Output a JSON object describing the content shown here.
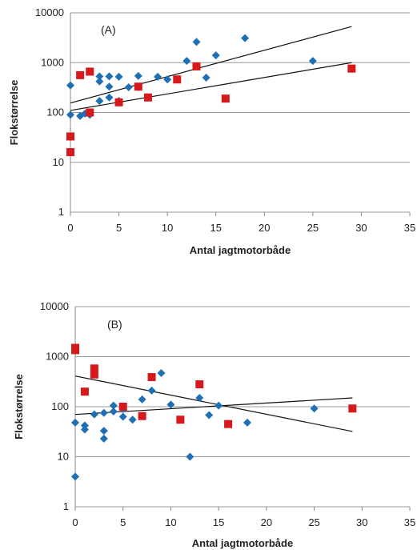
{
  "chart_data": [
    {
      "type": "scatter",
      "label": "(A)",
      "xlabel": "Antal jagtmotorbåde",
      "ylabel": "Flokstørrelse",
      "xlim": [
        0,
        35
      ],
      "ylim": [
        1,
        10000
      ],
      "y_scale": "log",
      "x_ticks": [
        "0",
        "5",
        "10",
        "15",
        "20",
        "25",
        "30",
        "35"
      ],
      "y_ticks": [
        "1",
        "10",
        "100",
        "1000",
        "10000"
      ],
      "grid": "horizontal",
      "series": [
        {
          "marker": "diamond",
          "color": "#1f6fb5",
          "points": [
            [
              0,
              90
            ],
            [
              0,
              350
            ],
            [
              1,
              85
            ],
            [
              1.5,
              95
            ],
            [
              2,
              90
            ],
            [
              3,
              170
            ],
            [
              3,
              420
            ],
            [
              3,
              530
            ],
            [
              4,
              200
            ],
            [
              4,
              330
            ],
            [
              4,
              530
            ],
            [
              5,
              170
            ],
            [
              5,
              520
            ],
            [
              6,
              320
            ],
            [
              7,
              320
            ],
            [
              7,
              540
            ],
            [
              8,
              200
            ],
            [
              9,
              520
            ],
            [
              10,
              460
            ],
            [
              12,
              1080
            ],
            [
              13,
              2600
            ],
            [
              14,
              500
            ],
            [
              15,
              1400
            ],
            [
              18,
              3100
            ],
            [
              25,
              1080
            ]
          ]
        },
        {
          "marker": "square",
          "color": "#d7191c",
          "points": [
            [
              0,
              16
            ],
            [
              0,
              33
            ],
            [
              1,
              560
            ],
            [
              2,
              660
            ],
            [
              2,
              100
            ],
            [
              5,
              160
            ],
            [
              7,
              330
            ],
            [
              8,
              200
            ],
            [
              11,
              460
            ],
            [
              13,
              840
            ],
            [
              16,
              190
            ],
            [
              29,
              760
            ]
          ]
        }
      ],
      "trendlines": [
        {
          "from": [
            0,
            155
          ],
          "to": [
            29,
            5300
          ]
        },
        {
          "from": [
            0,
            110
          ],
          "to": [
            29,
            1000
          ]
        }
      ]
    },
    {
      "type": "scatter",
      "label": "(B)",
      "xlabel": "Antal jagtmotorbåde",
      "ylabel": "Flokstørrelse",
      "xlim": [
        0,
        35
      ],
      "ylim": [
        1,
        10000
      ],
      "y_scale": "log",
      "x_ticks": [
        "0",
        "5",
        "10",
        "15",
        "20",
        "25",
        "30",
        "35"
      ],
      "y_ticks": [
        "1",
        "10",
        "100",
        "1000",
        "10000"
      ],
      "grid": "horizontal",
      "series": [
        {
          "marker": "diamond",
          "color": "#1f6fb5",
          "points": [
            [
              0,
              4
            ],
            [
              0,
              48
            ],
            [
              1,
              42
            ],
            [
              1,
              35
            ],
            [
              2,
              70
            ],
            [
              3,
              75
            ],
            [
              3,
              33
            ],
            [
              3,
              23
            ],
            [
              4,
              80
            ],
            [
              4,
              105
            ],
            [
              5,
              90
            ],
            [
              5,
              63
            ],
            [
              6,
              55
            ],
            [
              7,
              140
            ],
            [
              8,
              210
            ],
            [
              9,
              470
            ],
            [
              10,
              110
            ],
            [
              12,
              10
            ],
            [
              13,
              150
            ],
            [
              14,
              68
            ],
            [
              15,
              105
            ],
            [
              18,
              48
            ],
            [
              25,
              92
            ]
          ]
        },
        {
          "marker": "square",
          "color": "#d7191c",
          "points": [
            [
              0,
              1500
            ],
            [
              0,
              1350
            ],
            [
              1,
              200
            ],
            [
              2,
              580
            ],
            [
              2,
              440
            ],
            [
              5,
              100
            ],
            [
              7,
              65
            ],
            [
              8,
              390
            ],
            [
              11,
              55
            ],
            [
              13,
              280
            ],
            [
              16,
              45
            ],
            [
              29,
              92
            ]
          ]
        }
      ],
      "trendlines": [
        {
          "from": [
            0,
            410
          ],
          "to": [
            29,
            32
          ]
        },
        {
          "from": [
            0,
            70
          ],
          "to": [
            29,
            150
          ]
        }
      ]
    }
  ]
}
